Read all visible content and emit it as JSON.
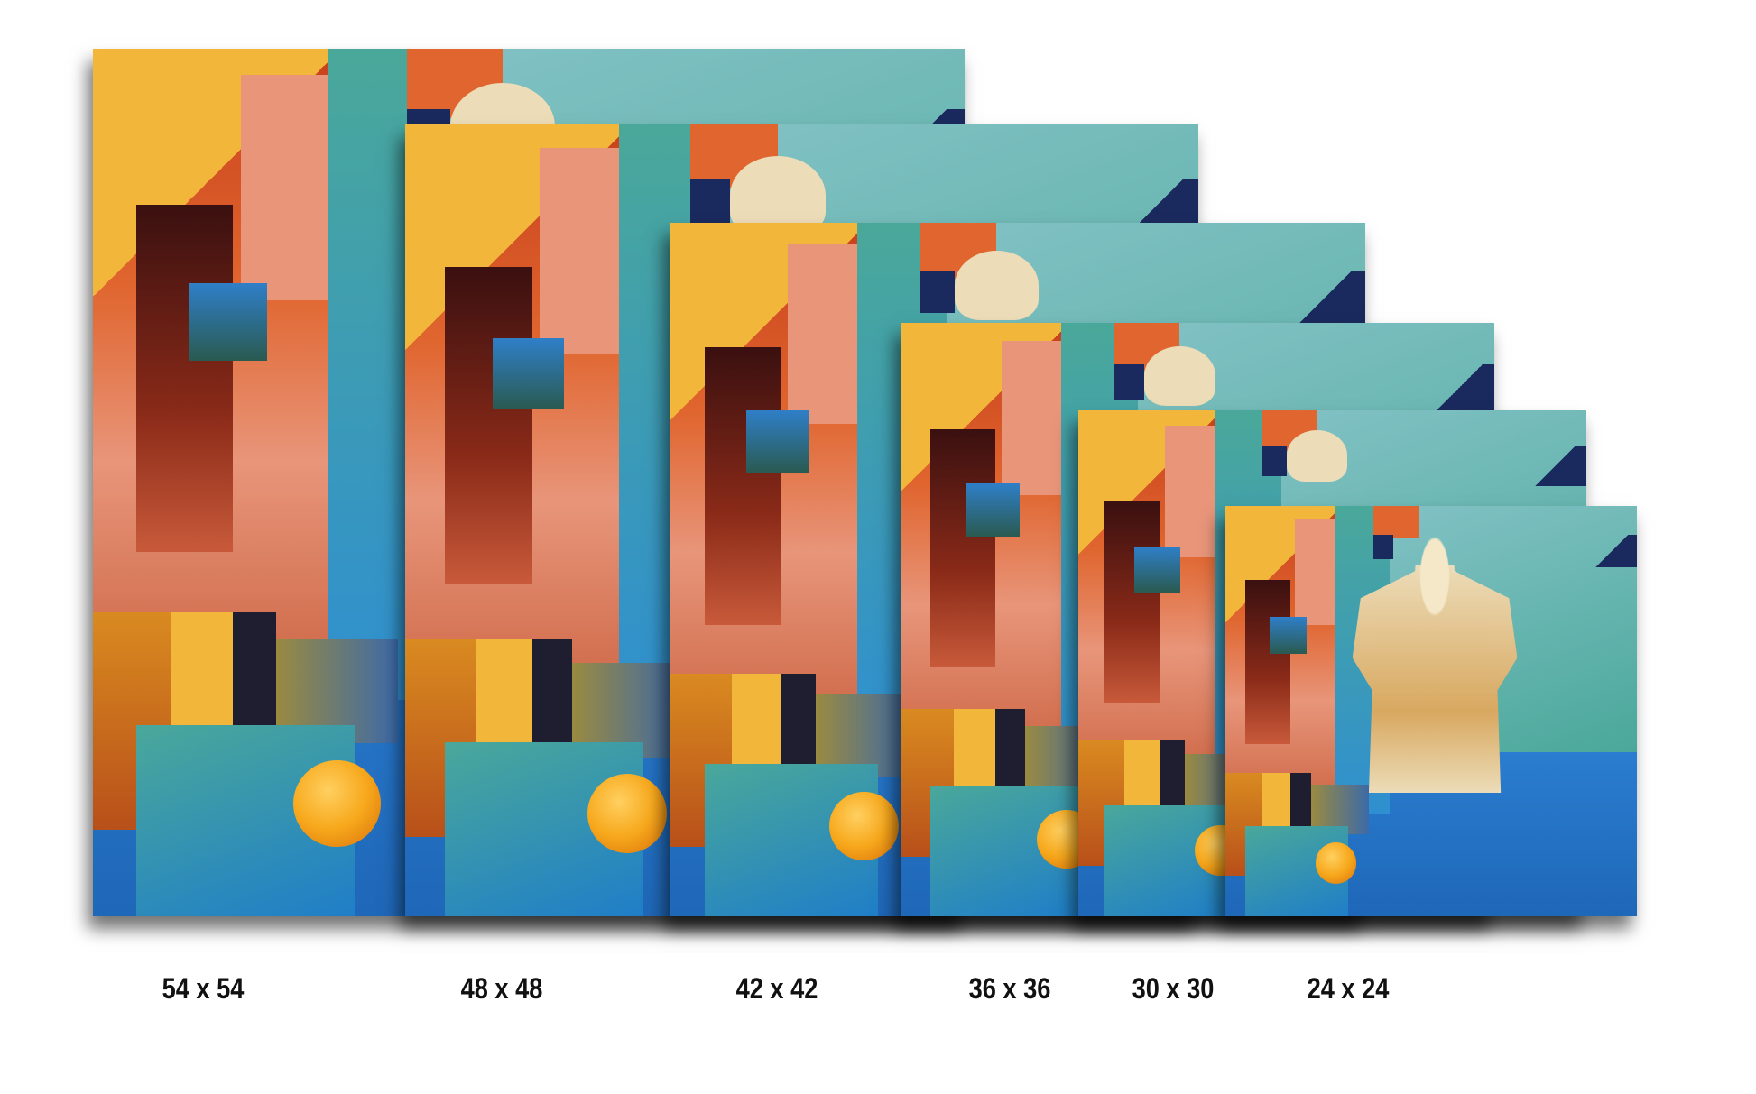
{
  "sizes": [
    {
      "label": "54 x 54"
    },
    {
      "label": "48 x 48"
    },
    {
      "label": "42 x 42"
    },
    {
      "label": "36 x 36"
    },
    {
      "label": "30 x 30"
    },
    {
      "label": "24 x 24"
    }
  ],
  "colors": {
    "orange": "#e0652e",
    "red": "#c8401c",
    "yellow": "#f2b63a",
    "pink": "#e8957a",
    "teal": "#4aa89a",
    "sky": "#8cc6cc",
    "blue": "#2a7dd0",
    "navy": "#1b2a5e",
    "sphere": "#f7a81c",
    "statue": "#ecdcb8"
  }
}
